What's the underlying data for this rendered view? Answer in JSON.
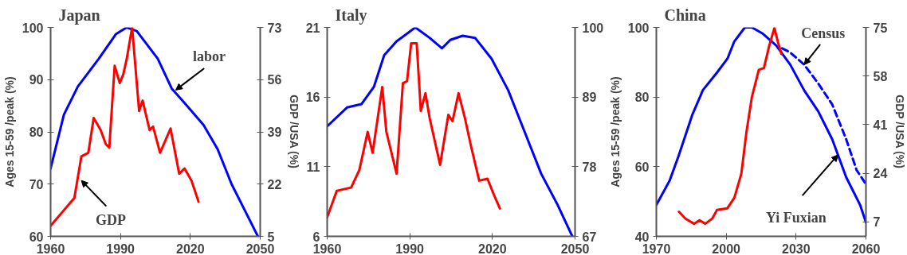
{
  "chart_data": [
    {
      "type": "line",
      "title": "Japan",
      "ylabel": "Ages 15-59 /peak (%)",
      "y2label": "GDP /USA (%)",
      "xlim": [
        1960,
        2050
      ],
      "xticks": [
        1960,
        1990,
        2020,
        2050
      ],
      "ylim": [
        60,
        100
      ],
      "yticks": [
        60,
        70,
        80,
        90,
        100
      ],
      "y2lim": [
        5,
        73
      ],
      "y2ticks": [
        5,
        22,
        39,
        56,
        73
      ],
      "series": [
        {
          "color": "#0000ff",
          "x": [
            1960,
            1965.7,
            1971.7,
            1980.7,
            1988,
            1992.7,
            1997,
            2006,
            2012,
            2018,
            2025.7,
            2031.7,
            2037.7,
            2043.7,
            2048.2,
            2049
          ],
          "values": [
            73,
            83.3,
            88.7,
            94,
            98.7,
            100,
            99.3,
            94,
            88.3,
            85.3,
            81.3,
            76.7,
            70,
            64.7,
            60.7,
            60
          ]
        },
        {
          "color": "#ff0000",
          "axis": "y2",
          "x": [
            1960,
            1965.7,
            1970.2,
            1973.2,
            1976.2,
            1978.5,
            1981.5,
            1983.7,
            1985.2,
            1987.5,
            1989.7,
            1991.2,
            1992.7,
            1995,
            1998,
            1999.5,
            2002.5,
            2004,
            2007,
            2011.5,
            2015.2,
            2017.5,
            2020.5,
            2023.5
          ],
          "values": [
            8.4,
            13.5,
            17.5,
            31,
            32.2,
            43.5,
            39.6,
            35,
            33.9,
            60.5,
            54.9,
            57.7,
            62.8,
            73,
            45.8,
            49.2,
            39.6,
            40.7,
            32.2,
            40.1,
            25.4,
            27.1,
            23.1,
            16.3
          ]
        }
      ],
      "annotations": [
        {
          "text": "labor",
          "x": 2013.7,
          "y": 88
        },
        {
          "text": "GDP",
          "x": 1973.2,
          "y": 70.7
        }
      ]
    },
    {
      "type": "line",
      "title": "Italy",
      "xlim": [
        1960,
        2050
      ],
      "xticks": [
        1960,
        1990,
        2020,
        2050
      ],
      "ylim": [
        6,
        21
      ],
      "yticks": [
        6,
        11,
        16,
        21
      ],
      "y2lim": [
        67,
        100
      ],
      "y2ticks": [
        67,
        78,
        89,
        100
      ],
      "series": [
        {
          "color": "#0000ff",
          "x": [
            1960,
            1967.2,
            1972.5,
            1977,
            1980.7,
            1985.2,
            1992,
            1997.2,
            2001.7,
            2004.7,
            2009.2,
            2013.7,
            2019.7,
            2025.7,
            2031.7,
            2037.7,
            2043.7,
            2049
          ],
          "values": [
            13.9,
            15.25,
            15.5,
            16.75,
            19,
            20,
            21,
            20.25,
            19.5,
            20.1,
            20.4,
            20.25,
            18.75,
            16.5,
            13.5,
            10.5,
            8.25,
            6
          ]
        },
        {
          "color": "#ff0000",
          "axis": "y2",
          "x": [
            1960,
            1963.5,
            1968.7,
            1971.7,
            1974.7,
            1976.5,
            1980,
            1981.5,
            1985.2,
            1987.5,
            1989,
            1990.5,
            1992.5,
            1994,
            1995.7,
            1997.2,
            2001,
            2004,
            2005.5,
            2007.7,
            2010,
            2012.2,
            2015.2,
            2018.2,
            2020.5,
            2022.7
          ],
          "values": [
            70,
            74.2,
            74.7,
            77.5,
            83.5,
            80.2,
            90.6,
            83.5,
            76.9,
            91.2,
            91.5,
            97.5,
            97.5,
            86.8,
            89.6,
            85.7,
            78.3,
            86.2,
            85.2,
            89.6,
            85.7,
            81.3,
            75.8,
            76.1,
            73.6,
            71.4
          ]
        }
      ]
    },
    {
      "type": "line",
      "title": "China",
      "ylabel": "Ages 15-59 /peak (%)",
      "y2label": "GDP /USA (%)",
      "xlim": [
        1970,
        2060
      ],
      "xticks": [
        1970,
        2000,
        2030,
        2060
      ],
      "ylim": [
        40,
        100
      ],
      "yticks": [
        40,
        60,
        80,
        100
      ],
      "y2lim": [
        2,
        75
      ],
      "y2ticks": [
        7,
        24,
        41,
        58,
        75
      ],
      "series": [
        {
          "color": "#0000ff",
          "x": [
            1970,
            1975.7,
            1979.5,
            1985.5,
            1990,
            1996,
            2000.5,
            2003.5,
            2008,
            2011,
            2015.5,
            2021.5,
            2027.5,
            2033.5,
            2039.5,
            2045.5,
            2051.5,
            2057.5,
            2060
          ],
          "values": [
            49,
            56,
            63,
            75,
            82,
            87,
            91,
            96,
            100,
            100,
            98.3,
            94.8,
            89.3,
            81.9,
            75.9,
            67.9,
            57,
            49,
            44
          ]
        },
        {
          "color": "#0000ff",
          "line_style": "dashed",
          "x": [
            2024,
            2027.5,
            2033.5,
            2039.5,
            2045.5,
            2051.5,
            2056,
            2060
          ],
          "values": [
            94,
            92.8,
            89.3,
            83.9,
            77.9,
            67.9,
            59,
            55
          ]
        },
        {
          "color": "#ff0000",
          "axis": "y2",
          "x": [
            1979.7,
            1982.5,
            1986.2,
            1988.5,
            1991,
            1994,
            1996,
            2000.5,
            2003.5,
            2006.5,
            2008.7,
            2011,
            2014,
            2016.2,
            2018.5,
            2020.7,
            2022.2,
            2023.7
          ],
          "values": [
            10.6,
            8.2,
            6.4,
            7.6,
            6.4,
            8.2,
            11.2,
            11.8,
            15.5,
            23.9,
            38.5,
            50.6,
            60.2,
            60.8,
            68.7,
            74.8,
            69.9,
            65.7
          ]
        }
      ],
      "annotations": [
        {
          "text": "Census",
          "x": 2033.5,
          "y": 89.3
        },
        {
          "text": "Yi Fuxian",
          "x": 2048,
          "y": 63.4
        }
      ]
    }
  ]
}
